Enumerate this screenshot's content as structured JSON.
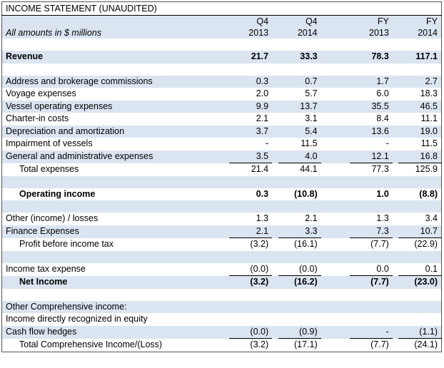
{
  "title": "INCOME STATEMENT (UNAUDITED)",
  "subtitle": "All amounts in $ millions",
  "columns": [
    {
      "line1": "Q4",
      "line2": "2013"
    },
    {
      "line1": "Q4",
      "line2": "2014"
    },
    {
      "line1": "FY",
      "line2": "2013"
    },
    {
      "line1": "FY",
      "line2": "2014"
    }
  ],
  "revenue": {
    "label": "Revenue",
    "values": [
      "21.7",
      "33.3",
      "78.3",
      "117.1"
    ]
  },
  "expenses": [
    {
      "label": "Address and brokerage commissions",
      "values": [
        "0.3",
        "0.7",
        "1.7",
        "2.7"
      ]
    },
    {
      "label": "Voyage expenses",
      "values": [
        "2.0",
        "5.7",
        "6.0",
        "18.3"
      ]
    },
    {
      "label": "Vessel operating expenses",
      "values": [
        "9.9",
        "13.7",
        "35.5",
        "46.5"
      ]
    },
    {
      "label": "Charter-in costs",
      "values": [
        "2.1",
        "3.1",
        "8.4",
        "11.1"
      ]
    },
    {
      "label": "Depreciation and amortization",
      "values": [
        "3.7",
        "5.4",
        "13.6",
        "19.0"
      ]
    },
    {
      "label": "Impairment of vessels",
      "values": [
        "-",
        "11.5",
        "-",
        "11.5"
      ]
    },
    {
      "label": "General and administrative expenses",
      "values": [
        "3.5",
        "4.0",
        "12.1",
        "16.8"
      ]
    }
  ],
  "total_expenses": {
    "label": "Total expenses",
    "values": [
      "21.4",
      "44.1",
      "77.3",
      "125.9"
    ]
  },
  "operating_income": {
    "label": "Operating income",
    "values": [
      "0.3",
      "(10.8)",
      "1.0",
      "(8.8)"
    ]
  },
  "other_items": [
    {
      "label": "Other (income) / losses",
      "values": [
        "1.3",
        "2.1",
        "1.3",
        "3.4"
      ]
    },
    {
      "label": "Finance Expenses",
      "values": [
        "2.1",
        "3.3",
        "7.3",
        "10.7"
      ]
    }
  ],
  "profit_before_tax": {
    "label": "Profit before income tax",
    "values": [
      "(3.2)",
      "(16.1)",
      "(7.7)",
      "(22.9)"
    ]
  },
  "income_tax": {
    "label": "Income tax expense",
    "values": [
      "(0.0)",
      "(0.0)",
      "0.0",
      "0.1"
    ]
  },
  "net_income": {
    "label": "Net Income",
    "values": [
      "(3.2)",
      "(16.2)",
      "(7.7)",
      "(23.0)"
    ]
  },
  "oci_header": "Other Comprehensive income:",
  "oci_sub": "Income directly recognized in equity",
  "cash_flow_hedges": {
    "label": "Cash flow hedges",
    "values": [
      "(0.0)",
      "(0.9)",
      "-",
      "(1.1)"
    ]
  },
  "total_comprehensive": {
    "label": "Total Comprehensive Income/(Loss)",
    "values": [
      "(3.2)",
      "(17.1)",
      "(7.7)",
      "(24.1)"
    ]
  },
  "colors": {
    "shade": "#dbe5f1",
    "border": "#000000"
  }
}
